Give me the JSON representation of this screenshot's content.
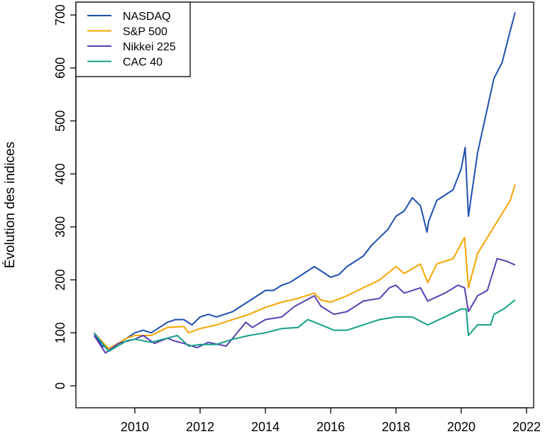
{
  "chart_data": {
    "type": "line",
    "title": "",
    "xlabel": "",
    "ylabel": "Évolution des indices",
    "xlim": [
      2008.4,
      2022.4
    ],
    "ylim": [
      -40,
      730
    ],
    "x_ticks": [
      2010,
      2012,
      2014,
      2016,
      2018,
      2020,
      2022
    ],
    "y_ticks": [
      0,
      100,
      200,
      300,
      400,
      500,
      600,
      700
    ],
    "grid": false,
    "legend_position": "top-left",
    "series": [
      {
        "name": "NASDAQ",
        "color": "#1f4fb0",
        "points": [
          [
            2008.75,
            100
          ],
          [
            2009.0,
            75
          ],
          [
            2009.25,
            70
          ],
          [
            2009.5,
            80
          ],
          [
            2009.75,
            90
          ],
          [
            2010.0,
            100
          ],
          [
            2010.25,
            105
          ],
          [
            2010.5,
            100
          ],
          [
            2010.75,
            110
          ],
          [
            2011.0,
            120
          ],
          [
            2011.25,
            125
          ],
          [
            2011.5,
            125
          ],
          [
            2011.75,
            115
          ],
          [
            2012.0,
            130
          ],
          [
            2012.25,
            135
          ],
          [
            2012.5,
            130
          ],
          [
            2012.75,
            135
          ],
          [
            2013.0,
            140
          ],
          [
            2013.25,
            150
          ],
          [
            2013.5,
            160
          ],
          [
            2013.75,
            170
          ],
          [
            2014.0,
            180
          ],
          [
            2014.25,
            180
          ],
          [
            2014.5,
            190
          ],
          [
            2014.75,
            195
          ],
          [
            2015.0,
            205
          ],
          [
            2015.25,
            215
          ],
          [
            2015.5,
            225
          ],
          [
            2015.75,
            215
          ],
          [
            2016.0,
            205
          ],
          [
            2016.25,
            210
          ],
          [
            2016.5,
            225
          ],
          [
            2016.75,
            235
          ],
          [
            2017.0,
            245
          ],
          [
            2017.25,
            265
          ],
          [
            2017.5,
            280
          ],
          [
            2017.75,
            295
          ],
          [
            2018.0,
            320
          ],
          [
            2018.25,
            330
          ],
          [
            2018.5,
            355
          ],
          [
            2018.75,
            340
          ],
          [
            2018.95,
            290
          ],
          [
            2019.0,
            310
          ],
          [
            2019.25,
            350
          ],
          [
            2019.5,
            360
          ],
          [
            2019.75,
            370
          ],
          [
            2020.0,
            410
          ],
          [
            2020.12,
            450
          ],
          [
            2020.22,
            320
          ],
          [
            2020.5,
            440
          ],
          [
            2020.75,
            510
          ],
          [
            2021.0,
            580
          ],
          [
            2021.25,
            610
          ],
          [
            2021.5,
            670
          ],
          [
            2021.65,
            705
          ]
        ]
      },
      {
        "name": "S&P 500",
        "color": "#f5a400",
        "points": [
          [
            2008.75,
            100
          ],
          [
            2009.2,
            70
          ],
          [
            2009.75,
            90
          ],
          [
            2010.0,
            95
          ],
          [
            2010.5,
            95
          ],
          [
            2011.0,
            110
          ],
          [
            2011.5,
            112
          ],
          [
            2011.65,
            100
          ],
          [
            2012.0,
            108
          ],
          [
            2012.5,
            115
          ],
          [
            2013.0,
            125
          ],
          [
            2013.5,
            135
          ],
          [
            2014.0,
            148
          ],
          [
            2014.5,
            158
          ],
          [
            2015.0,
            165
          ],
          [
            2015.5,
            175
          ],
          [
            2015.7,
            162
          ],
          [
            2016.0,
            158
          ],
          [
            2016.5,
            170
          ],
          [
            2017.0,
            185
          ],
          [
            2017.5,
            200
          ],
          [
            2018.0,
            225
          ],
          [
            2018.25,
            212
          ],
          [
            2018.75,
            230
          ],
          [
            2018.97,
            195
          ],
          [
            2019.25,
            230
          ],
          [
            2019.75,
            240
          ],
          [
            2020.1,
            280
          ],
          [
            2020.22,
            185
          ],
          [
            2020.5,
            250
          ],
          [
            2021.0,
            300
          ],
          [
            2021.5,
            350
          ],
          [
            2021.65,
            380
          ]
        ]
      },
      {
        "name": "Nikkei 225",
        "color": "#5b3fb0",
        "points": [
          [
            2008.75,
            95
          ],
          [
            2009.1,
            62
          ],
          [
            2009.5,
            80
          ],
          [
            2010.0,
            88
          ],
          [
            2010.25,
            95
          ],
          [
            2010.6,
            80
          ],
          [
            2011.0,
            90
          ],
          [
            2011.2,
            85
          ],
          [
            2011.5,
            80
          ],
          [
            2011.9,
            72
          ],
          [
            2012.25,
            82
          ],
          [
            2012.8,
            75
          ],
          [
            2013.0,
            90
          ],
          [
            2013.4,
            120
          ],
          [
            2013.6,
            110
          ],
          [
            2014.0,
            125
          ],
          [
            2014.5,
            130
          ],
          [
            2014.9,
            150
          ],
          [
            2015.5,
            170
          ],
          [
            2015.7,
            150
          ],
          [
            2016.1,
            135
          ],
          [
            2016.5,
            140
          ],
          [
            2017.0,
            160
          ],
          [
            2017.5,
            165
          ],
          [
            2017.8,
            185
          ],
          [
            2018.0,
            190
          ],
          [
            2018.25,
            175
          ],
          [
            2018.75,
            185
          ],
          [
            2018.97,
            160
          ],
          [
            2019.5,
            175
          ],
          [
            2019.9,
            190
          ],
          [
            2020.1,
            185
          ],
          [
            2020.22,
            140
          ],
          [
            2020.5,
            170
          ],
          [
            2020.8,
            180
          ],
          [
            2021.1,
            240
          ],
          [
            2021.4,
            235
          ],
          [
            2021.65,
            228
          ]
        ]
      },
      {
        "name": "CAC 40",
        "color": "#12a087",
        "points": [
          [
            2008.75,
            100
          ],
          [
            2009.2,
            65
          ],
          [
            2009.75,
            85
          ],
          [
            2010.0,
            88
          ],
          [
            2010.5,
            82
          ],
          [
            2011.0,
            90
          ],
          [
            2011.3,
            95
          ],
          [
            2011.65,
            75
          ],
          [
            2012.0,
            78
          ],
          [
            2012.5,
            78
          ],
          [
            2013.0,
            88
          ],
          [
            2013.5,
            95
          ],
          [
            2014.0,
            100
          ],
          [
            2014.5,
            108
          ],
          [
            2015.0,
            110
          ],
          [
            2015.3,
            125
          ],
          [
            2015.7,
            115
          ],
          [
            2016.1,
            105
          ],
          [
            2016.5,
            105
          ],
          [
            2017.0,
            115
          ],
          [
            2017.5,
            125
          ],
          [
            2018.0,
            130
          ],
          [
            2018.5,
            130
          ],
          [
            2018.97,
            115
          ],
          [
            2019.5,
            130
          ],
          [
            2020.0,
            145
          ],
          [
            2020.15,
            145
          ],
          [
            2020.22,
            95
          ],
          [
            2020.5,
            115
          ],
          [
            2020.9,
            115
          ],
          [
            2021.0,
            135
          ],
          [
            2021.3,
            145
          ],
          [
            2021.65,
            162
          ]
        ]
      }
    ]
  }
}
